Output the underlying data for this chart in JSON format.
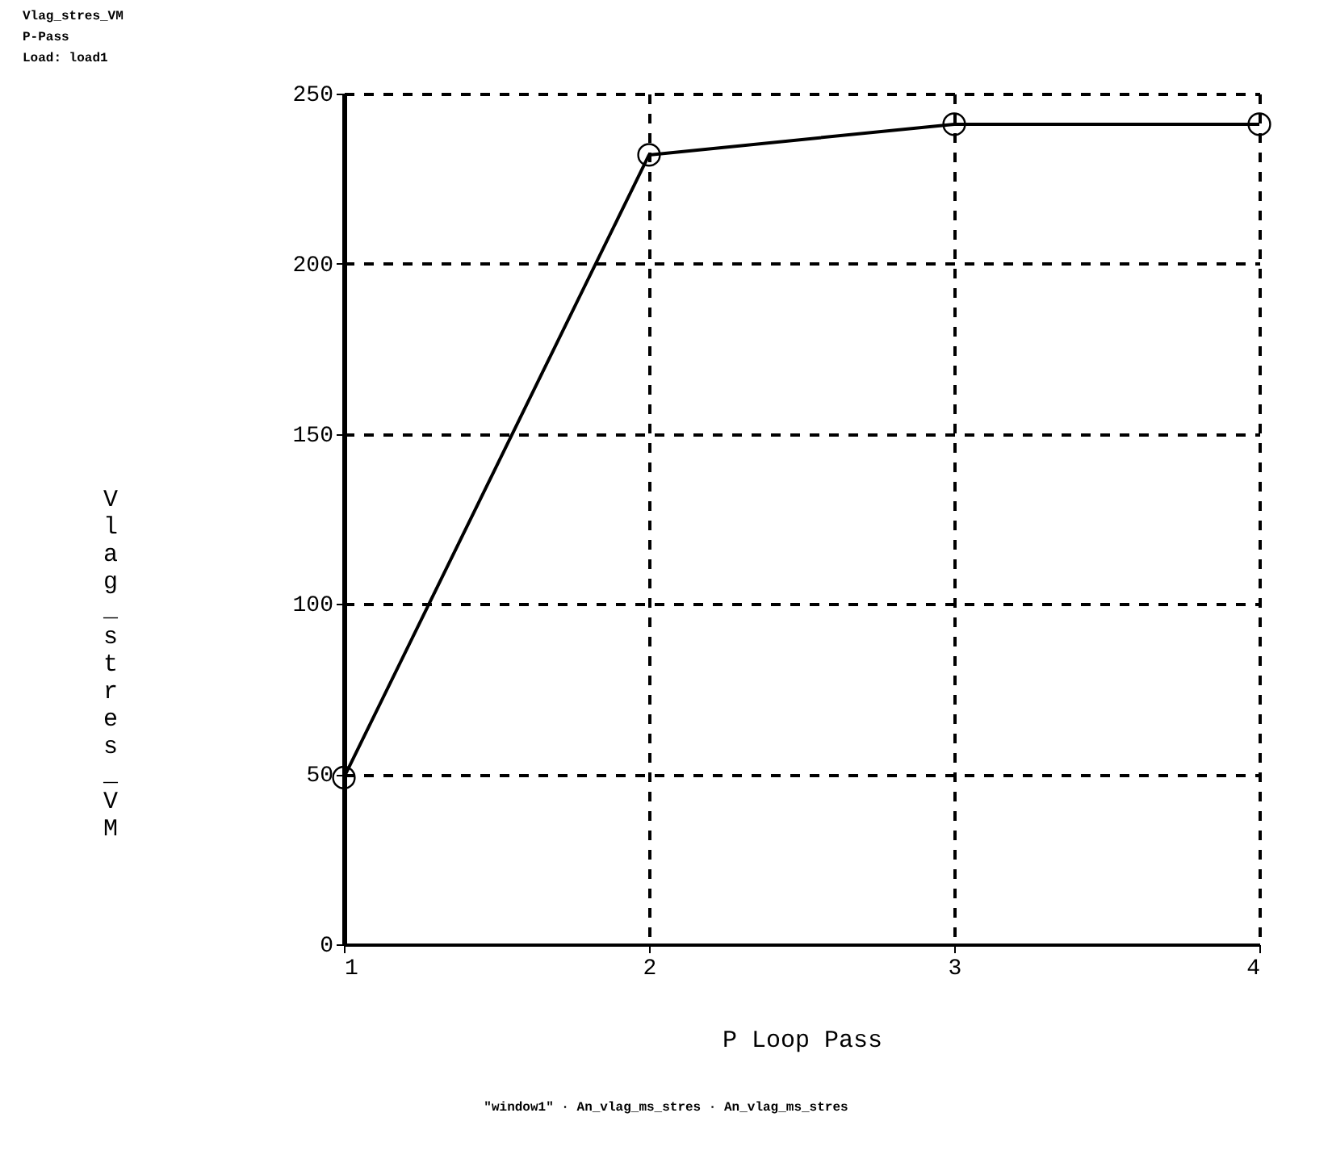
{
  "chart_data": {
    "type": "line",
    "title": "Vlag_stres_VM",
    "subtitle": "P-Pass",
    "annotations": [
      "Load: load1",
      "\"window1\" · An_vlag_ms_stres · An_vlag_ms_stres"
    ],
    "xlabel": "P Loop Pass",
    "ylabel": "Vlag_stres_VM",
    "x": [
      1,
      2,
      3,
      4
    ],
    "series": [
      {
        "color": "#000000",
        "values": [
          49,
          232,
          241,
          241
        ]
      }
    ],
    "xlim": [
      1,
      4
    ],
    "xticks": [
      1,
      2,
      3,
      4
    ],
    "ylim": [
      0,
      250
    ],
    "yticks": [
      0,
      50,
      100,
      150,
      200,
      250
    ],
    "grid": true,
    "marker": "circle",
    "line_style": "solid",
    "legend": false
  }
}
